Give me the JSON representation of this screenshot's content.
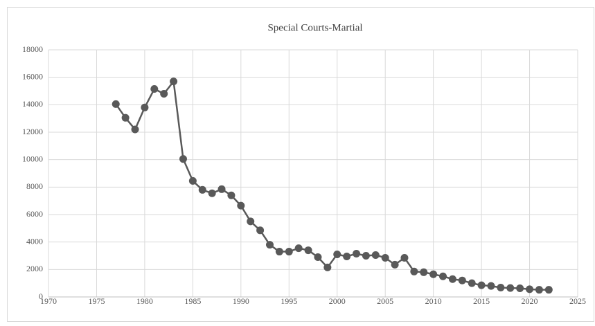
{
  "chart_data": {
    "type": "line",
    "title": "Special Courts-Martial",
    "x": [
      1977,
      1978,
      1979,
      1980,
      1981,
      1982,
      1983,
      1984,
      1985,
      1986,
      1987,
      1988,
      1989,
      1990,
      1991,
      1992,
      1993,
      1994,
      1995,
      1996,
      1997,
      1998,
      1999,
      2000,
      2001,
      2002,
      2003,
      2004,
      2005,
      2006,
      2007,
      2008,
      2009,
      2010,
      2011,
      2012,
      2013,
      2014,
      2015,
      2016,
      2017,
      2018,
      2019,
      2020,
      2021,
      2022
    ],
    "values": [
      14050,
      13050,
      12200,
      13800,
      15150,
      14800,
      15700,
      10050,
      8450,
      7800,
      7550,
      7850,
      7400,
      6650,
      5500,
      4850,
      3800,
      3300,
      3300,
      3550,
      3400,
      2900,
      2150,
      3100,
      2950,
      3150,
      3000,
      3050,
      2850,
      2350,
      2850,
      1850,
      1800,
      1650,
      1500,
      1300,
      1200,
      1000,
      850,
      800,
      680,
      650,
      630,
      560,
      520,
      520
    ],
    "color": "#595959",
    "xlim": [
      1970,
      2025
    ],
    "xticks": [
      1970,
      1975,
      1980,
      1985,
      1990,
      1995,
      2000,
      2005,
      2010,
      2015,
      2020,
      2025
    ],
    "ylim": [
      0,
      18000
    ],
    "yticks": [
      0,
      2000,
      4000,
      6000,
      8000,
      10000,
      12000,
      14000,
      16000,
      18000
    ],
    "grid": true,
    "markers": true
  }
}
